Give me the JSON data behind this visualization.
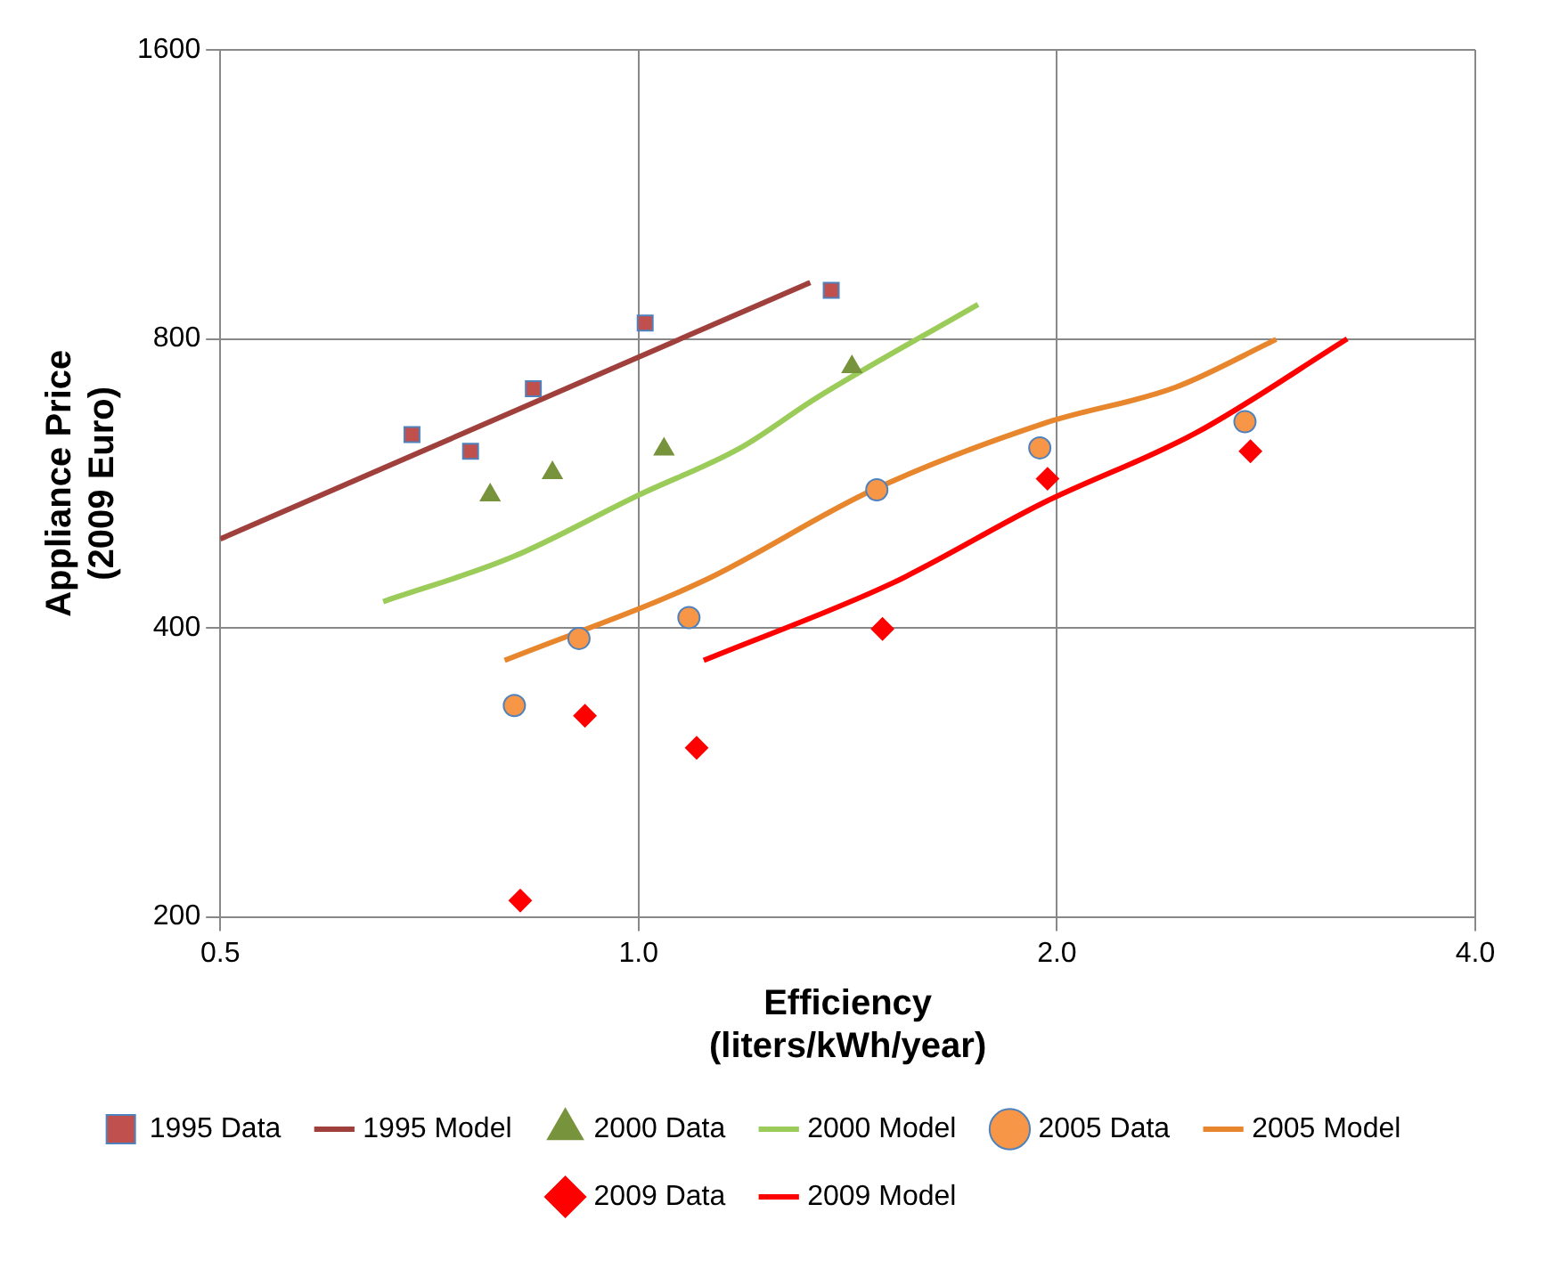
{
  "chart_data": {
    "type": "scatter",
    "xlabel": "Efficiency\n(liters/kWh/year)",
    "ylabel": "Appliance Price\n(2009 Euro)",
    "log": "xy",
    "xlim": [
      0.5,
      4
    ],
    "ylim": [
      200,
      1600
    ],
    "xticks": [
      {
        "value": 0.5,
        "label": "0.5"
      },
      {
        "value": 1,
        "label": "1.0"
      },
      {
        "value": 2,
        "label": "2.0"
      },
      {
        "value": 4,
        "label": "4.0"
      }
    ],
    "yticks": [
      200,
      400,
      800,
      1600
    ],
    "grid": true,
    "legend": "bottom",
    "series": [
      {
        "name": "1995 Data",
        "marker": "square",
        "color": "#c0504d",
        "x": [
          0.687,
          0.757,
          0.84,
          1.011,
          1.376
        ],
        "values": [
          636,
          611,
          710,
          831,
          899
        ]
      },
      {
        "name": "1995 Model",
        "type": "line",
        "marker": "none",
        "color": "#a0403d",
        "x": [
          0.5,
          1.329
        ],
        "values": [
          495,
          916
        ]
      },
      {
        "name": "2000 Data",
        "marker": "triangle",
        "color": "#77933c",
        "x": [
          0.782,
          0.867,
          1.043,
          1.424
        ],
        "values": [
          550,
          580,
          614,
          748
        ]
      },
      {
        "name": "2000 Model",
        "type": "line",
        "marker": "none",
        "color": "#9bcb59",
        "x": [
          0.655,
          0.811,
          1.0,
          1.184,
          1.342,
          1.755
        ],
        "values": [
          426,
          474,
          550,
          616,
          694,
          869
        ]
      },
      {
        "name": "2005 Data",
        "marker": "circle",
        "color": "#f79646",
        "x": [
          0.814,
          0.906,
          1.087,
          1.484,
          1.944,
          2.731
        ],
        "values": [
          332,
          390,
          410,
          557,
          616,
          656
        ]
      },
      {
        "name": "2005 Model",
        "type": "line",
        "marker": "none",
        "color": "#e8862e",
        "x": [
          0.801,
          1.111,
          1.475,
          1.956,
          2.438,
          2.876
        ],
        "values": [
          370,
          447,
          557,
          653,
          713,
          799
        ]
      },
      {
        "name": "2009 Data",
        "marker": "diamond",
        "color": "#ff0000",
        "x": [
          0.822,
          0.915,
          1.101,
          1.498,
          1.969,
          2.756
        ],
        "values": [
          208,
          324,
          300,
          399,
          572,
          611
        ]
      },
      {
        "name": "2009 Model",
        "type": "line",
        "marker": "none",
        "color": "#ff0000",
        "x": [
          1.114,
          1.521,
          1.956,
          2.516,
          3.235
        ],
        "values": [
          370,
          445,
          540,
          638,
          800
        ]
      }
    ]
  }
}
